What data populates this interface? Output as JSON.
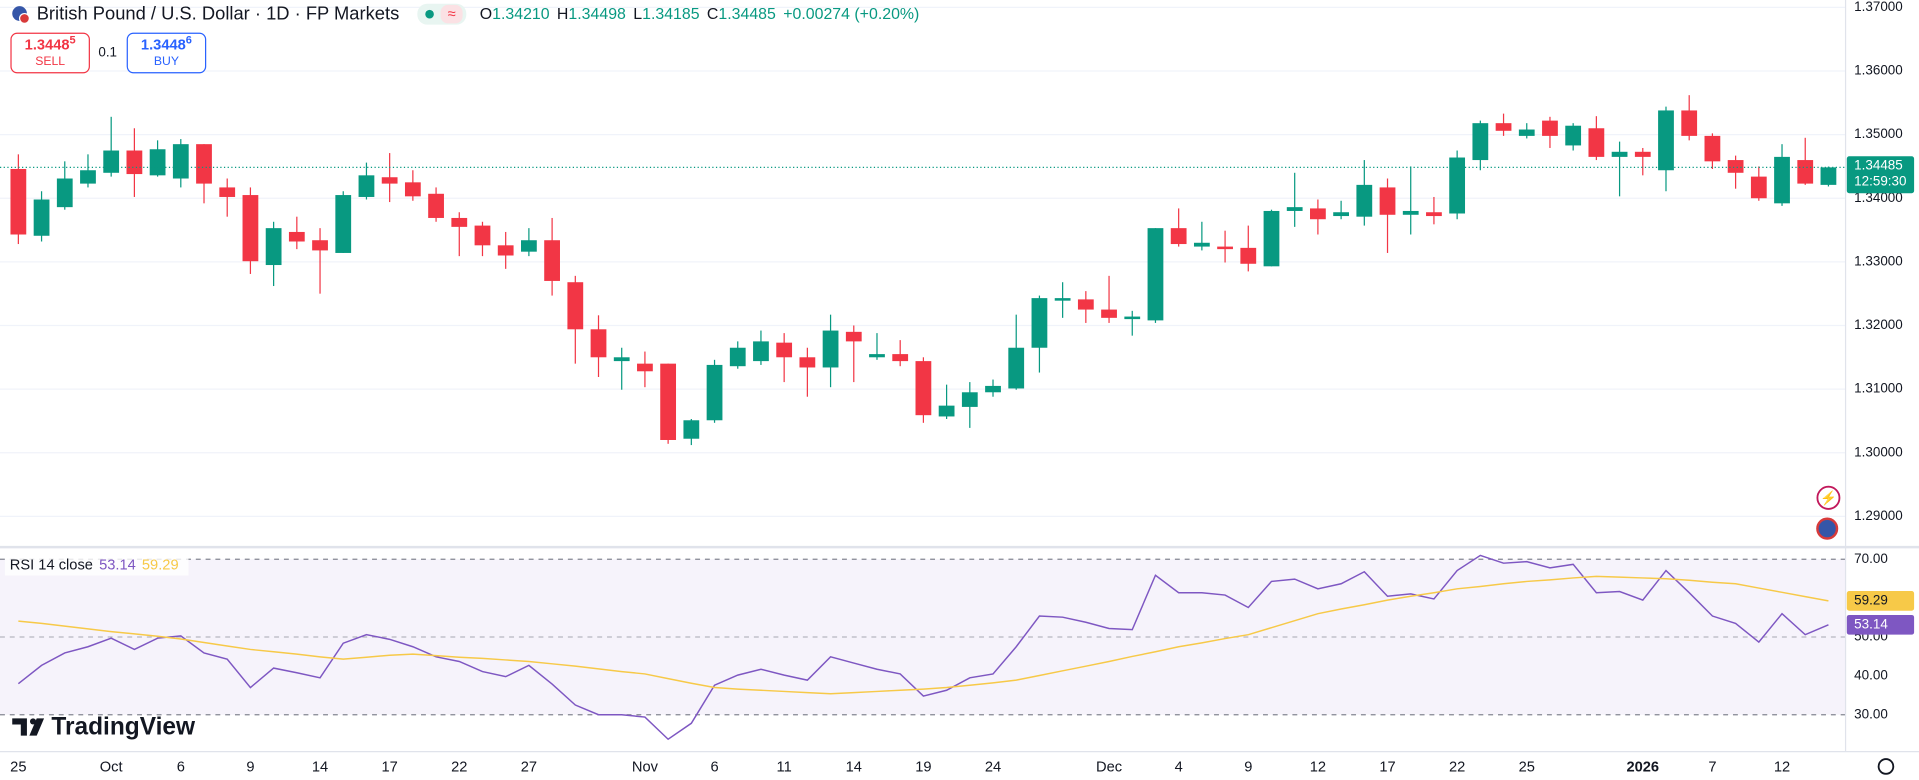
{
  "header": {
    "title": "British Pound / U.S. Dollar · 1D · FP Markets",
    "ohlc": [
      {
        "label": "O",
        "value": "1.34210"
      },
      {
        "label": "H",
        "value": "1.34498"
      },
      {
        "label": "L",
        "value": "1.34185"
      },
      {
        "label": "C",
        "value": "1.34485"
      }
    ],
    "change": "+0.00274 (+0.20%)"
  },
  "trade": {
    "sell_price": "1.3448",
    "sell_digit": "5",
    "sell_label": "SELL",
    "spread": "0.1",
    "buy_price": "1.3448",
    "buy_digit": "6",
    "buy_label": "BUY"
  },
  "brand": "TradingView",
  "chart_data": [
    {
      "type": "candlestick",
      "categories": [
        "25",
        null,
        null,
        null,
        "Oct",
        null,
        null,
        "6",
        null,
        null,
        "9",
        null,
        null,
        "14",
        null,
        null,
        "17",
        null,
        null,
        "22",
        null,
        null,
        "27",
        null,
        null,
        null,
        null,
        "Nov",
        null,
        null,
        "6",
        null,
        null,
        "11",
        null,
        null,
        "14",
        null,
        null,
        "19",
        null,
        null,
        "24",
        null,
        null,
        null,
        null,
        "Dec",
        null,
        null,
        "4",
        null,
        null,
        "9",
        null,
        null,
        "12",
        null,
        null,
        "17",
        null,
        null,
        "22",
        null,
        null,
        "25",
        null,
        null,
        null,
        null,
        "2026",
        null,
        null,
        "7",
        null,
        null,
        "12",
        null,
        null
      ],
      "open": [
        1.3446,
        1.3341,
        1.3386,
        1.3423,
        1.344,
        1.3475,
        1.3436,
        1.3431,
        1.3485,
        1.3417,
        1.3405,
        1.3295,
        1.3347,
        1.3334,
        1.3314,
        1.3402,
        1.3433,
        1.3425,
        1.3407,
        1.3369,
        1.3357,
        1.3326,
        1.3316,
        1.3334,
        1.3268,
        1.3194,
        1.3144,
        1.314,
        1.314,
        1.3022,
        1.3051,
        1.3136,
        1.3144,
        1.3173,
        1.315,
        1.3134,
        1.319,
        1.315,
        1.3155,
        1.3144,
        1.3057,
        1.3072,
        1.3095,
        1.3101,
        1.3165,
        1.3239,
        1.3241,
        1.3225,
        1.321,
        1.3208,
        1.3353,
        1.3324,
        1.3324,
        1.3322,
        1.3293,
        1.338,
        1.3384,
        1.3372,
        1.3371,
        1.3417,
        1.3374,
        1.3378,
        1.3376,
        1.346,
        1.3518,
        1.3498,
        1.3522,
        1.3483,
        1.351,
        1.3465,
        1.3473,
        1.3444,
        1.3538,
        1.3498,
        1.346,
        1.3434,
        1.3392,
        1.346,
        1.3421
      ],
      "high": [
        1.3469,
        1.3411,
        1.3458,
        1.3469,
        1.3528,
        1.351,
        1.3491,
        1.3493,
        1.3485,
        1.3431,
        1.3417,
        1.3363,
        1.3371,
        1.3353,
        1.3411,
        1.3456,
        1.3471,
        1.3444,
        1.3417,
        1.3378,
        1.3363,
        1.3347,
        1.3353,
        1.3369,
        1.3278,
        1.3216,
        1.3165,
        1.3159,
        1.314,
        1.3053,
        1.3146,
        1.3175,
        1.3192,
        1.3188,
        1.3165,
        1.3217,
        1.32,
        1.3188,
        1.3177,
        1.315,
        1.3107,
        1.3111,
        1.3115,
        1.3217,
        1.3247,
        1.3268,
        1.3254,
        1.3278,
        1.3223,
        1.3353,
        1.3384,
        1.3363,
        1.3349,
        1.3357,
        1.3382,
        1.344,
        1.3398,
        1.3396,
        1.346,
        1.3431,
        1.345,
        1.3402,
        1.3475,
        1.3522,
        1.3533,
        1.3518,
        1.3528,
        1.3518,
        1.3529,
        1.3489,
        1.3479,
        1.3544,
        1.3562,
        1.3502,
        1.3467,
        1.345,
        1.3485,
        1.3495,
        1.34498
      ],
      "low": [
        1.3328,
        1.3332,
        1.3382,
        1.3417,
        1.3434,
        1.3402,
        1.3434,
        1.3417,
        1.3392,
        1.3371,
        1.3281,
        1.3262,
        1.332,
        1.325,
        1.3314,
        1.3398,
        1.3394,
        1.3396,
        1.3363,
        1.3309,
        1.3309,
        1.3289,
        1.3309,
        1.3247,
        1.314,
        1.3119,
        1.3099,
        1.3103,
        1.3014,
        1.3012,
        1.3047,
        1.3132,
        1.3138,
        1.3111,
        1.3088,
        1.3103,
        1.3111,
        1.3146,
        1.3136,
        1.3047,
        1.3053,
        1.3039,
        1.3088,
        1.3099,
        1.3126,
        1.3212,
        1.3204,
        1.3204,
        1.3184,
        1.3204,
        1.3324,
        1.3318,
        1.3299,
        1.3285,
        1.3293,
        1.3355,
        1.3343,
        1.3367,
        1.3357,
        1.3314,
        1.3343,
        1.3359,
        1.3367,
        1.3444,
        1.3498,
        1.3494,
        1.3479,
        1.3475,
        1.346,
        1.3403,
        1.3436,
        1.3411,
        1.3491,
        1.3446,
        1.3415,
        1.3396,
        1.3388,
        1.3421,
        1.34185
      ],
      "close": [
        1.3343,
        1.3398,
        1.3431,
        1.3444,
        1.3475,
        1.3438,
        1.3477,
        1.3485,
        1.3423,
        1.3402,
        1.3301,
        1.3353,
        1.3332,
        1.3318,
        1.3405,
        1.3436,
        1.3423,
        1.3403,
        1.3369,
        1.3355,
        1.3326,
        1.331,
        1.3334,
        1.327,
        1.3194,
        1.315,
        1.315,
        1.3128,
        1.302,
        1.3051,
        1.3138,
        1.3165,
        1.3175,
        1.315,
        1.3134,
        1.3192,
        1.3175,
        1.3155,
        1.3144,
        1.3059,
        1.3074,
        1.3095,
        1.3105,
        1.3165,
        1.3243,
        1.3243,
        1.3225,
        1.3212,
        1.3214,
        1.3353,
        1.3328,
        1.333,
        1.332,
        1.3297,
        1.338,
        1.3386,
        1.3367,
        1.3378,
        1.3421,
        1.3374,
        1.338,
        1.3372,
        1.3464,
        1.3518,
        1.3506,
        1.3508,
        1.3498,
        1.3514,
        1.3465,
        1.3473,
        1.3465,
        1.3538,
        1.3498,
        1.3458,
        1.344,
        1.34,
        1.3465,
        1.3423,
        1.34485
      ],
      "up_color": "#089981",
      "down_color": "#f23645",
      "ylim": [
        1.28555,
        1.37116
      ],
      "yticks": [
        {
          "value": 1.37,
          "label": "1.37000"
        },
        {
          "value": 1.36,
          "label": "1.36000"
        },
        {
          "value": 1.35,
          "label": "1.35000"
        },
        {
          "value": 1.34,
          "label": "1.34000"
        },
        {
          "value": 1.33,
          "label": "1.33000"
        },
        {
          "value": 1.32,
          "label": "1.32000"
        },
        {
          "value": 1.31,
          "label": "1.31000"
        },
        {
          "value": 1.3,
          "label": "1.30000"
        },
        {
          "value": 1.29,
          "label": "1.29000"
        }
      ],
      "grid": true,
      "last_price_label": "1.34485",
      "countdown": "12:59:30"
    },
    {
      "type": "line",
      "title": "RSI 14 close",
      "series": [
        {
          "color": "#7e57c2",
          "values": [
            38,
            42.7,
            45.9,
            47.5,
            49.7,
            46.8,
            49.7,
            50.3,
            45.9,
            44.3,
            37,
            42,
            40.8,
            39.5,
            48.4,
            50.6,
            49.4,
            47.5,
            44.9,
            43.7,
            41.1,
            39.8,
            42.7,
            37.9,
            32.5,
            30,
            30,
            29.4,
            23.7,
            27.8,
            37.6,
            40.2,
            41.7,
            40.2,
            38.9,
            44.9,
            43.3,
            41.7,
            40.5,
            34.8,
            36.3,
            39.5,
            40.5,
            47.5,
            55.4,
            55.1,
            53.8,
            52.2,
            51.9,
            65.9,
            61.4,
            61.4,
            60.8,
            57.6,
            64.3,
            64.9,
            62.4,
            63.7,
            66.8,
            60.5,
            61.1,
            59.8,
            67.1,
            71,
            69,
            69.4,
            67.8,
            68.7,
            61.4,
            61.7,
            59.5,
            67.1,
            61.4,
            55.4,
            53.5,
            48.7,
            56,
            50.6,
            53.14
          ]
        },
        {
          "color": "#f7c948",
          "values": [
            54.1,
            53.5,
            52.8,
            52.1,
            51.4,
            50.8,
            50.2,
            49.5,
            48.6,
            47.7,
            46.8,
            46.2,
            45.6,
            44.9,
            44.3,
            44.8,
            45.3,
            45.6,
            45.2,
            44.8,
            44.5,
            44.1,
            43.7,
            43.1,
            42.5,
            41.8,
            41.1,
            40.5,
            39.3,
            38.1,
            37,
            36.6,
            36.3,
            36,
            35.7,
            35.4,
            35.7,
            36,
            36.3,
            36.6,
            37,
            37.6,
            38.2,
            38.9,
            40.1,
            41.3,
            42.5,
            43.7,
            45,
            46.2,
            47.5,
            48.5,
            49.6,
            50.6,
            52.4,
            54.2,
            56,
            57.2,
            58.3,
            59.5,
            60.5,
            61.4,
            62.4,
            63,
            63.7,
            64.3,
            64.7,
            65.2,
            65.6,
            65.4,
            65.2,
            65,
            64.6,
            64.1,
            63.7,
            62.6,
            61.5,
            60.4,
            59.29
          ]
        }
      ],
      "ylim": [
        20.5,
        72.5
      ],
      "yticks": [
        {
          "value": 70,
          "label": "70.00"
        },
        {
          "value": 50,
          "label": "50.00"
        },
        {
          "value": 40,
          "label": "40.00"
        },
        {
          "value": 30,
          "label": "30.00"
        }
      ],
      "bands": [
        70,
        50,
        30
      ]
    }
  ]
}
